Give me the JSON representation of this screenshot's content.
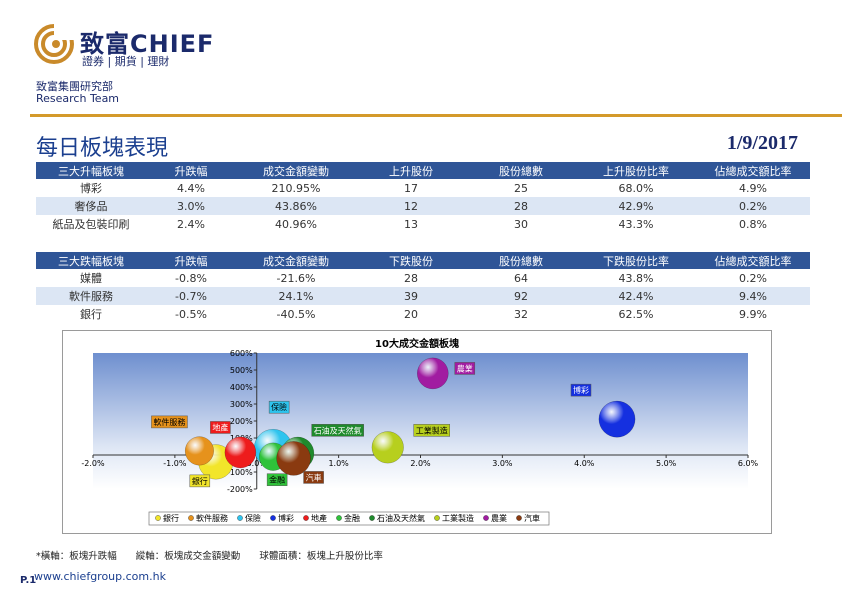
{
  "brand": {
    "name": "致富CHIEF",
    "tagline": "證券 | 期貨 | 理財",
    "department": "致富集團研究部",
    "team": "Research Team"
  },
  "page": {
    "title": "每日板塊表現",
    "date": "1/9/2017"
  },
  "top_gainers": {
    "headers": [
      "三大升幅板塊",
      "升跌幅",
      "成交金額變動",
      "上升股份",
      "股份總數",
      "上升股份比率",
      "佔總成交額比率"
    ],
    "rows": [
      [
        "博彩",
        "4.4%",
        "210.95%",
        "17",
        "25",
        "68.0%",
        "4.9%"
      ],
      [
        "奢侈品",
        "3.0%",
        "43.86%",
        "12",
        "28",
        "42.9%",
        "0.2%"
      ],
      [
        "紙品及包裝印刷",
        "2.4%",
        "40.96%",
        "13",
        "30",
        "43.3%",
        "0.8%"
      ]
    ]
  },
  "top_losers": {
    "headers": [
      "三大跌幅板塊",
      "升跌幅",
      "成交金額變動",
      "下跌股份",
      "股份總數",
      "下跌股份比率",
      "佔總成交額比率"
    ],
    "rows": [
      [
        "媒體",
        "-0.8%",
        "-21.6%",
        "28",
        "64",
        "43.8%",
        "0.2%"
      ],
      [
        "軟件服務",
        "-0.7%",
        "24.1%",
        "39",
        "92",
        "42.4%",
        "9.4%"
      ],
      [
        "銀行",
        "-0.5%",
        "-40.5%",
        "20",
        "32",
        "62.5%",
        "9.9%"
      ]
    ]
  },
  "chart_data": {
    "type": "scatter",
    "bubble": true,
    "title": "10大成交金額板塊",
    "xlabel": "",
    "ylabel": "",
    "xlim": [
      -2,
      6
    ],
    "ylim": [
      -200,
      600
    ],
    "xticks": [
      "-2.0%",
      "-1.0%",
      "0.0%",
      "1.0%",
      "2.0%",
      "3.0%",
      "4.0%",
      "5.0%",
      "6.0%"
    ],
    "yticks": [
      "-200%",
      "-100%",
      "0%",
      "100%",
      "200%",
      "300%",
      "400%",
      "500%",
      "600%"
    ],
    "grid": false,
    "legend": "bottom",
    "series": [
      {
        "name": "銀行",
        "x": -0.5,
        "y": -40.5,
        "size": 62.5,
        "color": "#f2e52a"
      },
      {
        "name": "軟件服務",
        "x": -0.7,
        "y": 24.1,
        "size": 42.4,
        "color": "#e6921c"
      },
      {
        "name": "保險",
        "x": 0.2,
        "y": 40,
        "size": 75,
        "color": "#2ec4ee"
      },
      {
        "name": "博彩",
        "x": 4.4,
        "y": 210.95,
        "size": 68.0,
        "color": "#1530e0"
      },
      {
        "name": "地產",
        "x": -0.2,
        "y": 15,
        "size": 50,
        "color": "#ee1c1c"
      },
      {
        "name": "金融",
        "x": 0.2,
        "y": -10,
        "size": 40,
        "color": "#2fc23a"
      },
      {
        "name": "石油及天然氣",
        "x": 0.5,
        "y": 10,
        "size": 55,
        "color": "#1f8a2c"
      },
      {
        "name": "工業製造",
        "x": 1.6,
        "y": 45,
        "size": 52,
        "color": "#b7cf1e"
      },
      {
        "name": "農業",
        "x": 2.15,
        "y": 480,
        "size": 50,
        "color": "#a11ca1"
      },
      {
        "name": "汽車",
        "x": 0.45,
        "y": -20,
        "size": 60,
        "color": "#8a3a10"
      }
    ],
    "label_text_colors": {
      "銀行": "#000000",
      "軟件服務": "#000000",
      "保險": "#000000",
      "博彩": "#ffffff",
      "地產": "#ffffff",
      "金融": "#000000",
      "石油及天然氣": "#ffffff",
      "工業製造": "#000000",
      "農業": "#ffffff",
      "汽車": "#ffffff"
    }
  },
  "footnote": {
    "x_axis": "*橫軸：板塊升跌幅",
    "y_axis": "縱軸：板塊成交金額變動",
    "bubble_area": "球體面積：板塊上升股份比率"
  },
  "footer": {
    "page_number": "P.1",
    "url": "www.chiefgroup.com.hk"
  }
}
